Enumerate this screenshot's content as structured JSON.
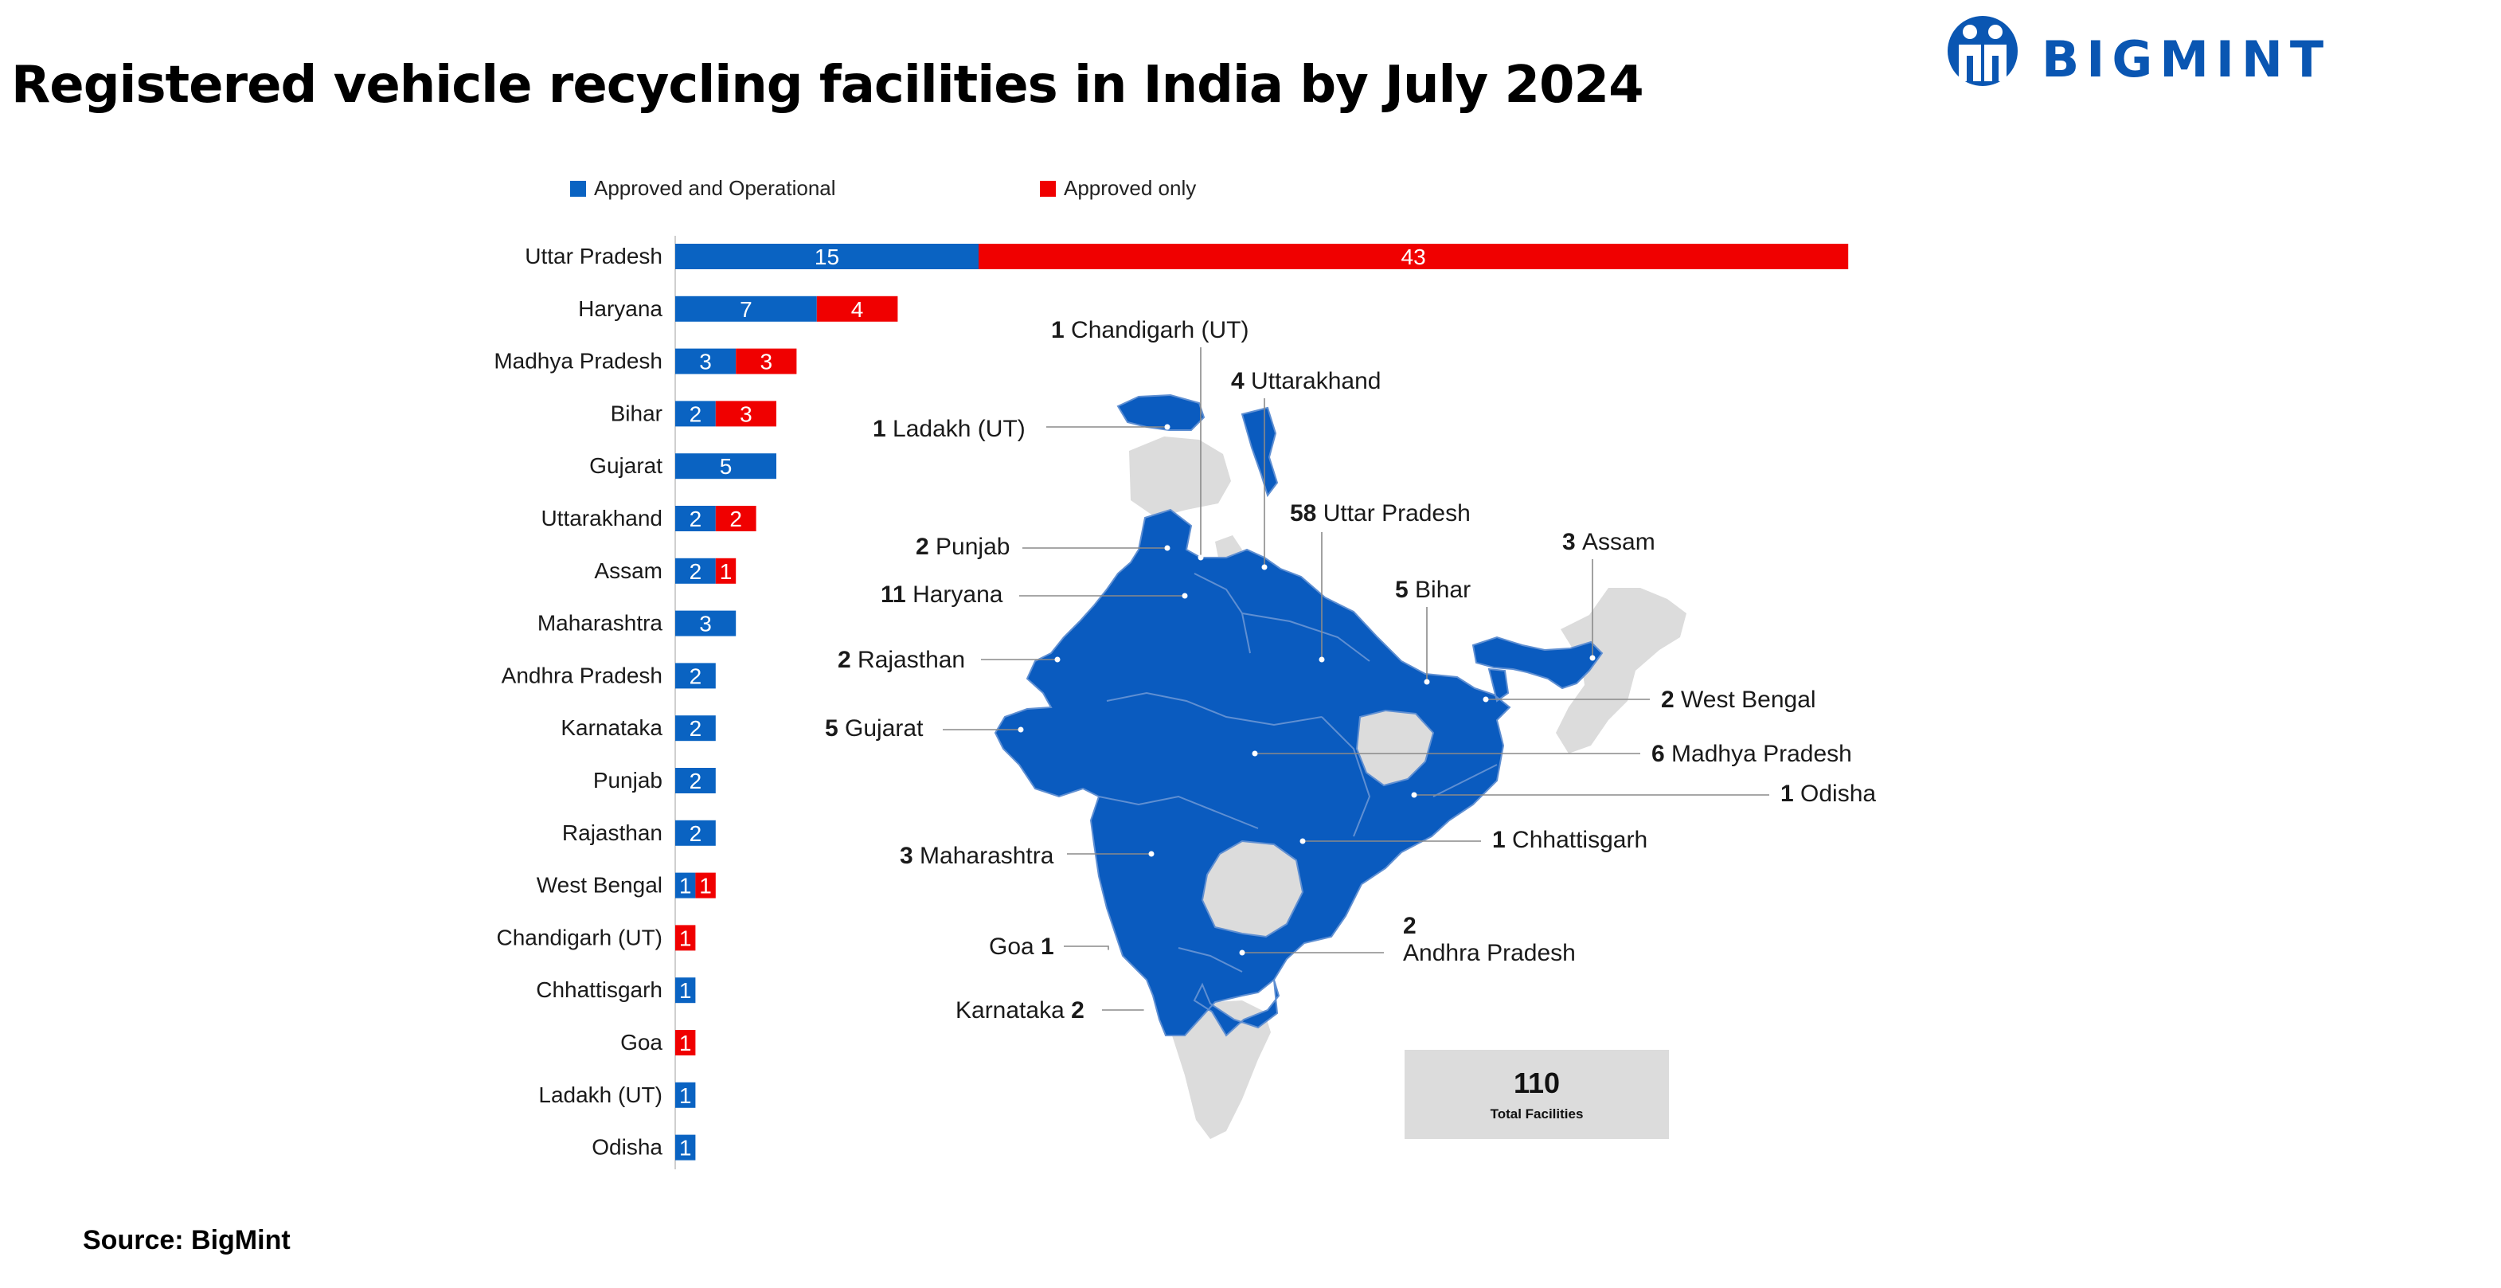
{
  "title": "Registered vehicle recycling facilities in India by July 2024",
  "brand": {
    "name": "BIGMINT",
    "color": "#0a56b2"
  },
  "source": "Source: BigMint",
  "chart_data": [
    {
      "type": "bar",
      "orientation": "horizontal",
      "stacked": true,
      "categories": [
        "Uttar Pradesh",
        "Haryana",
        "Madhya Pradesh",
        "Bihar",
        "Gujarat",
        "Uttarakhand",
        "Assam",
        "Maharashtra",
        "Andhra Pradesh",
        "Karnataka",
        "Punjab",
        "Rajasthan",
        "West Bengal",
        "Chandigarh (UT)",
        "Chhattisgarh",
        "Goa",
        "Ladakh (UT)",
        "Odisha"
      ],
      "series": [
        {
          "name": "Approved and Operational",
          "color": "#0a63c2",
          "values": [
            15,
            7,
            3,
            2,
            5,
            2,
            2,
            3,
            2,
            2,
            2,
            2,
            1,
            0,
            1,
            0,
            1,
            1
          ]
        },
        {
          "name": "Approved only",
          "color": "#f00000",
          "values": [
            43,
            4,
            3,
            3,
            0,
            2,
            1,
            0,
            0,
            0,
            0,
            0,
            1,
            1,
            0,
            1,
            0,
            0
          ]
        }
      ],
      "legend_position": "top",
      "grid": false
    },
    {
      "type": "map",
      "region": "India",
      "colors": {
        "with_facilities": "#0a5bbf",
        "without_facilities": "#dcdcdc"
      },
      "labels": [
        {
          "state": "Chandigarh (UT)",
          "count": "1",
          "count_side": "left"
        },
        {
          "state": "Uttarakhand",
          "count": "4",
          "count_side": "left"
        },
        {
          "state": "Ladakh (UT)",
          "count": "1",
          "count_side": "left"
        },
        {
          "state": "Uttar Pradesh",
          "count": "58",
          "count_side": "left"
        },
        {
          "state": "Assam",
          "count": "3",
          "count_side": "left"
        },
        {
          "state": "Punjab",
          "count": "2",
          "count_side": "left"
        },
        {
          "state": "Haryana",
          "count": "11",
          "count_side": "left"
        },
        {
          "state": "Bihar",
          "count": "5",
          "count_side": "left"
        },
        {
          "state": "Rajasthan",
          "count": "2",
          "count_side": "left"
        },
        {
          "state": "West Bengal",
          "count": "2",
          "count_side": "left"
        },
        {
          "state": "Gujarat",
          "count": "5",
          "count_side": "left"
        },
        {
          "state": "Madhya Pradesh",
          "count": "6",
          "count_side": "left"
        },
        {
          "state": "Odisha",
          "count": "1",
          "count_side": "left"
        },
        {
          "state": "Chhattisgarh",
          "count": "1",
          "count_side": "left"
        },
        {
          "state": "Maharashtra",
          "count": "3",
          "count_side": "left"
        },
        {
          "state": "Andhra Pradesh",
          "count": "2",
          "count_side": "above"
        },
        {
          "state": "Goa",
          "count": "1",
          "count_side": "right"
        },
        {
          "state": "Karnataka",
          "count": "2",
          "count_side": "right"
        }
      ],
      "total": {
        "value": "110",
        "label": "Total Facilities"
      }
    }
  ]
}
